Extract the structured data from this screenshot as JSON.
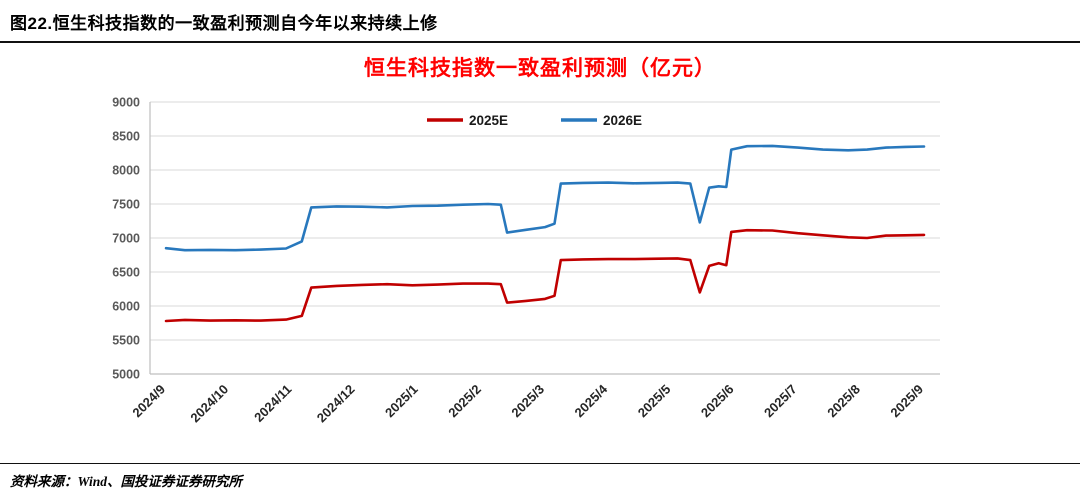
{
  "header": {
    "title": "图22.恒生科技指数的一致盈利预测自今年以来持续上修"
  },
  "chart_data": {
    "type": "line",
    "title": "恒生科技指数一致盈利预测（亿元）",
    "title_color": "#ff0000",
    "xlabel": "",
    "ylabel": "",
    "ylim": [
      5000,
      9000
    ],
    "ytick_step": 500,
    "grid": true,
    "legend_position": "top-center",
    "x_tick_labels": [
      "2024/9",
      "2024/10",
      "2024/11",
      "2024/12",
      "2025/1",
      "2025/2",
      "2025/3",
      "2025/4",
      "2025/5",
      "2025/6",
      "2025/7",
      "2025/8",
      "2025/9"
    ],
    "xlim": [
      0,
      12
    ],
    "x": [
      0,
      0.3,
      0.7,
      1.1,
      1.5,
      1.9,
      2.15,
      2.3,
      2.7,
      3.1,
      3.5,
      3.9,
      4.3,
      4.7,
      5.1,
      5.3,
      5.4,
      5.7,
      6.0,
      6.15,
      6.25,
      6.6,
      7.0,
      7.4,
      7.8,
      8.1,
      8.3,
      8.45,
      8.6,
      8.75,
      8.87,
      8.95,
      9.2,
      9.6,
      10.0,
      10.4,
      10.8,
      11.1,
      11.4,
      11.7,
      12.0
    ],
    "series": [
      {
        "name": "2025E",
        "color": "#c00000",
        "values": [
          5780,
          5795,
          5785,
          5790,
          5785,
          5800,
          5855,
          6270,
          6295,
          6310,
          6320,
          6305,
          6315,
          6330,
          6330,
          6320,
          6050,
          6075,
          6105,
          6150,
          6675,
          6685,
          6690,
          6690,
          6695,
          6700,
          6675,
          6200,
          6590,
          6630,
          6600,
          7090,
          7115,
          7110,
          7070,
          7040,
          7010,
          7000,
          7035,
          7040,
          7045
        ]
      },
      {
        "name": "2026E",
        "color": "#2878bd",
        "values": [
          6850,
          6820,
          6825,
          6820,
          6830,
          6845,
          6950,
          7450,
          7465,
          7460,
          7450,
          7470,
          7475,
          7490,
          7500,
          7490,
          7080,
          7120,
          7160,
          7210,
          7800,
          7810,
          7815,
          7805,
          7810,
          7815,
          7800,
          7230,
          7740,
          7760,
          7750,
          8300,
          8350,
          8355,
          8330,
          8300,
          8290,
          8300,
          8330,
          8340,
          8345
        ]
      }
    ]
  },
  "footer": {
    "source": "资料来源：Wind、国投证券证券研究所"
  },
  "style": {
    "grid_color": "#d9d9d9",
    "axis_color": "#bfbfbf",
    "y_label_color": "#595959",
    "x_label_color": "#262626"
  }
}
